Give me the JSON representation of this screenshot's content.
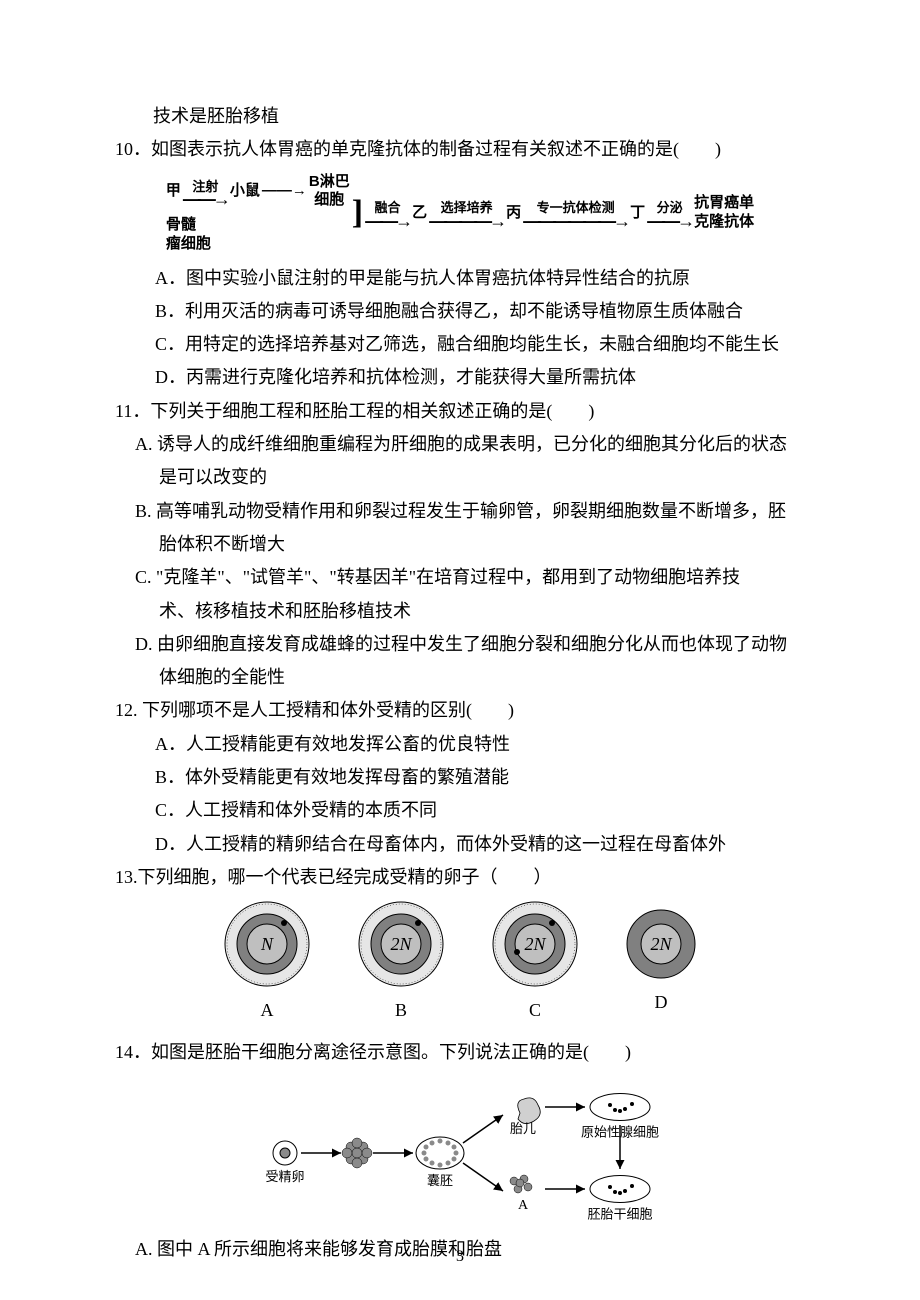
{
  "page_number": "3",
  "text": {
    "frag9d": "技术是胚胎移植",
    "q10": "10．如图表示抗人体胃癌的单克隆抗体的制备过程有关叙述不正确的是(　　)",
    "q10a": "A．图中实验小鼠注射的甲是能与抗人体胃癌抗体特异性结合的抗原",
    "q10b": "B．利用灭活的病毒可诱导细胞融合获得乙，却不能诱导植物原生质体融合",
    "q10c": "C．用特定的选择培养基对乙筛选，融合细胞均能生长，未融合细胞均不能生长",
    "q10d": "D．丙需进行克隆化培养和抗体检测，才能获得大量所需抗体",
    "q11": "11．下列关于细胞工程和胚胎工程的相关叙述正确的是(　　)",
    "q11a1": "A. 诱导人的成纤维细胞重编程为肝细胞的成果表明，已分化的细胞其分化后的状态",
    "q11a2": "是可以改变的",
    "q11b1": "B. 高等哺乳动物受精作用和卵裂过程发生于输卵管，卵裂期细胞数量不断增多，胚",
    "q11b2": "胎体积不断增大",
    "q11c1": "C. \"克隆羊\"、\"试管羊\"、\"转基因羊\"在培育过程中，都用到了动物细胞培养技",
    "q11c2": "术、核移植技术和胚胎移植技术",
    "q11d1": "D. 由卵细胞直接发育成雄蜂的过程中发生了细胞分裂和细胞分化从而也体现了动物",
    "q11d2": "体细胞的全能性",
    "q12": "12. 下列哪项不是人工授精和体外受精的区别(　　)",
    "q12a": "A．人工授精能更有效地发挥公畜的优良特性",
    "q12b": "B．体外受精能更有效地发挥母畜的繁殖潜能",
    "q12c": "C．人工授精和体外受精的本质不同",
    "q12d": "D．人工授精的精卵结合在母畜体内，而体外受精的这一过程在母畜体外",
    "q13": "13.下列细胞，哪一个代表已经完成受精的卵子（　　）",
    "q14": "14．如图是胚胎干细胞分离途径示意图。下列说法正确的是(　　)",
    "q14a": "A. 图中 A 所示细胞将来能够发育成胎膜和胎盘"
  },
  "flow10": {
    "jia": "甲",
    "zhu": "注射",
    "mouse": "小鼠",
    "blymph1": "B淋巴",
    "blymph2": "细胞",
    "bone1": "骨髓",
    "bone2": "瘤细胞",
    "fuse": "融合",
    "yi": "乙",
    "sel": "选择培养",
    "bing": "丙",
    "spec": "专一抗体检测",
    "ding": "丁",
    "fenmi": "分泌",
    "result1": "抗胃癌单",
    "result2": "克隆抗体"
  },
  "cells": {
    "items": [
      {
        "letter": "A",
        "nucleus": "N",
        "dots": [
          [
            45,
            7
          ]
        ]
      },
      {
        "letter": "B",
        "nucleus": "2N",
        "dots": [
          [
            45,
            7
          ]
        ]
      },
      {
        "letter": "C",
        "nucleus": "2N",
        "dots": [
          [
            45,
            7
          ],
          [
            10,
            36
          ]
        ]
      },
      {
        "letter": "D",
        "nucleus": "2N",
        "dots": []
      }
    ],
    "colors": {
      "outer_fill_light": "#f7f7f7",
      "outer_fill_pattern": "#e6e6e6",
      "ring_fill": "#808080",
      "nucleus_fill": "#bfbfbf",
      "stroke": "#000000",
      "text": "#000000"
    },
    "radii": {
      "outer": 42,
      "ring": 30,
      "nucleus": 20,
      "no_outer": 34
    },
    "font_style": "italic",
    "font_family": "Times New Roman, serif",
    "font_size": 18
  },
  "flow14": {
    "labels": {
      "fert": "受精卵",
      "blast": "囊胚",
      "fetus": "胎儿",
      "gonad": "原始性腺细胞",
      "stem": "胚胎干细胞",
      "A": "A"
    },
    "colors": {
      "stroke": "#000000",
      "fill_dish": "#ffffff",
      "fill_gray": "#8a8a8a"
    }
  }
}
